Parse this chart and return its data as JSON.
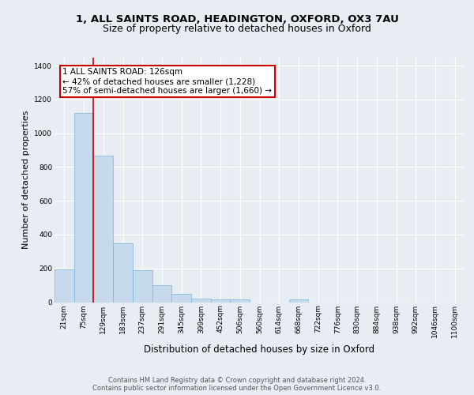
{
  "title_line1": "1, ALL SAINTS ROAD, HEADINGTON, OXFORD, OX3 7AU",
  "title_line2": "Size of property relative to detached houses in Oxford",
  "xlabel": "Distribution of detached houses by size in Oxford",
  "ylabel": "Number of detached properties",
  "bar_color": "#c6d9ed",
  "bar_edge_color": "#7ab3d8",
  "background_color": "#e8edf4",
  "categories": [
    "21sqm",
    "75sqm",
    "129sqm",
    "183sqm",
    "237sqm",
    "291sqm",
    "345sqm",
    "399sqm",
    "452sqm",
    "506sqm",
    "560sqm",
    "614sqm",
    "668sqm",
    "722sqm",
    "776sqm",
    "830sqm",
    "884sqm",
    "938sqm",
    "992sqm",
    "1046sqm",
    "1100sqm"
  ],
  "values": [
    195,
    1120,
    870,
    350,
    190,
    100,
    50,
    20,
    17,
    17,
    0,
    0,
    15,
    0,
    0,
    0,
    0,
    0,
    0,
    0,
    0
  ],
  "ylim": [
    0,
    1450
  ],
  "yticks": [
    0,
    200,
    400,
    600,
    800,
    1000,
    1200,
    1400
  ],
  "property_line_x": 1.5,
  "annotation_text": "1 ALL SAINTS ROAD: 126sqm\n← 42% of detached houses are smaller (1,228)\n57% of semi-detached houses are larger (1,660) →",
  "footer_line1": "Contains HM Land Registry data © Crown copyright and database right 2024.",
  "footer_line2": "Contains public sector information licensed under the Open Government Licence v3.0.",
  "grid_color": "#ffffff",
  "annotation_box_color": "#ffffff",
  "annotation_box_edge": "#cc0000",
  "vline_color": "#cc0000",
  "title1_fontsize": 9.5,
  "title2_fontsize": 9,
  "ylabel_fontsize": 8,
  "xlabel_fontsize": 8.5,
  "tick_fontsize": 6.5,
  "footer_fontsize": 6,
  "annotation_fontsize": 7.5
}
